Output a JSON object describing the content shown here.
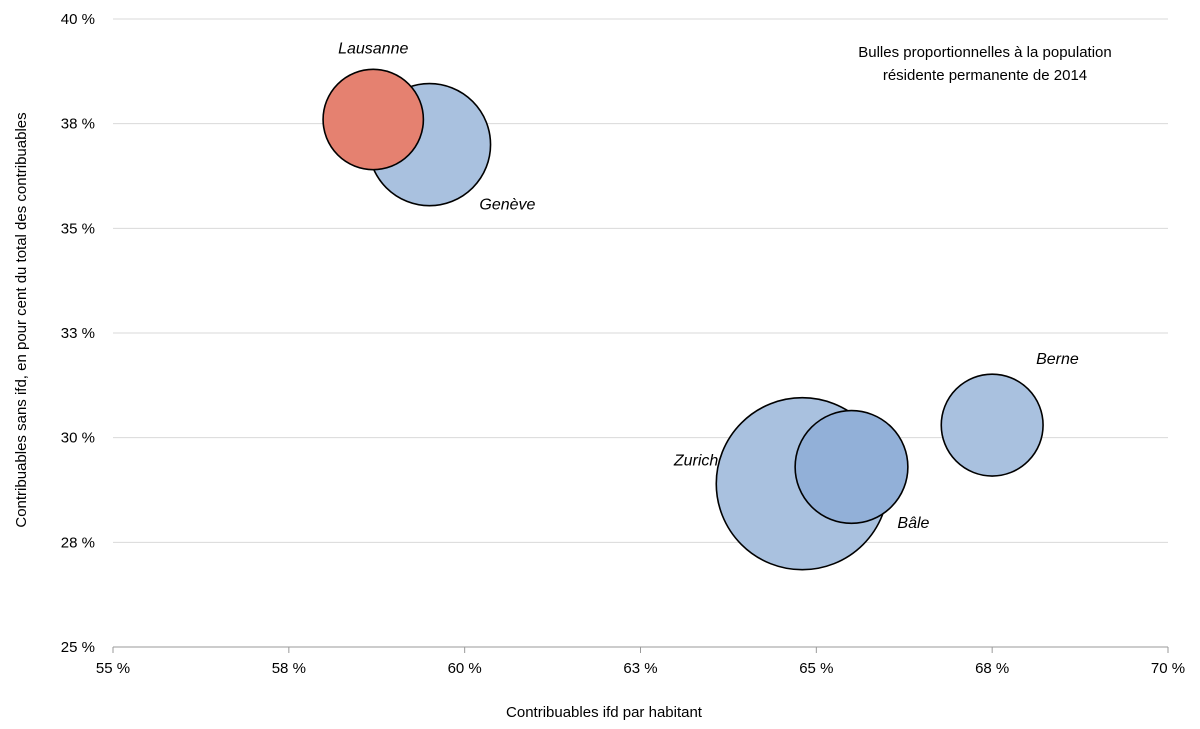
{
  "chart_data": {
    "type": "bubble",
    "xlabel": "Contribuables ifd par habitant",
    "ylabel": "Contribuables sans ifd, en pour cent du total des contribuables",
    "annotation": [
      "Bulles proportionnelles à la population",
      "résidente permanente de 2014"
    ],
    "xlim": [
      55,
      70
    ],
    "ylim": [
      25,
      40
    ],
    "x_ticks": [
      55,
      57.5,
      60,
      62.5,
      65,
      67.5,
      70
    ],
    "x_tick_labels": [
      "55 %",
      "58 %",
      "60 %",
      "63 %",
      "65 %",
      "68 %",
      "70 %"
    ],
    "y_ticks": [
      25,
      27.5,
      30,
      32.5,
      35,
      37.5,
      40
    ],
    "y_tick_labels": [
      "25 %",
      "28 %",
      "30 %",
      "33 %",
      "35 %",
      "38 %",
      "40 %"
    ],
    "grid": "horizontal",
    "points": [
      {
        "name": "Zurich",
        "x": 64.8,
        "y": 28.9,
        "population": 391000,
        "color": "#a9c1df",
        "label_pos": "left"
      },
      {
        "name": "Bâle",
        "x": 65.5,
        "y": 29.3,
        "population": 168000,
        "color": "#92b0d8",
        "label_pos": "right-below"
      },
      {
        "name": "Berne",
        "x": 67.5,
        "y": 30.3,
        "population": 137000,
        "color": "#a9c1df",
        "label_pos": "right-above"
      },
      {
        "name": "Genève",
        "x": 59.5,
        "y": 37.0,
        "population": 197000,
        "color": "#a9c1df",
        "label_pos": "right-below"
      },
      {
        "name": "Lausanne",
        "x": 58.7,
        "y": 37.6,
        "population": 133000,
        "color": "#e58170",
        "label_pos": "above"
      }
    ]
  }
}
